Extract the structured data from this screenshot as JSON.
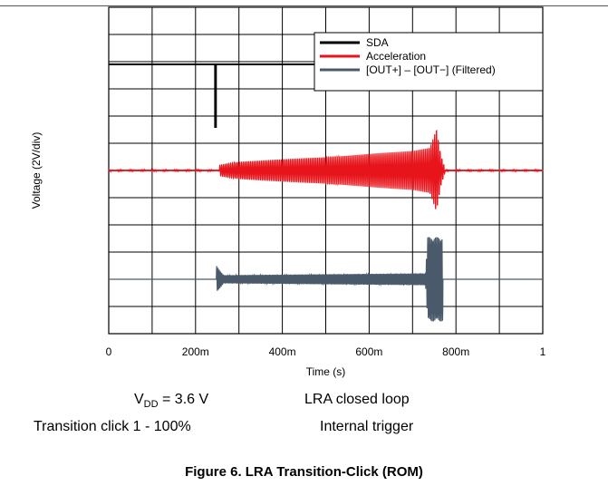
{
  "chart_data": {
    "type": "line",
    "title": "",
    "xlabel": "Time (s)",
    "ylabel": "Voltage (2V/div)",
    "xlim": [
      0,
      1
    ],
    "y_divisions": 12,
    "grid": true,
    "legend_position": "top-right",
    "x_ticks": [
      {
        "value": 0,
        "label": "0"
      },
      {
        "value": 0.2,
        "label": "200m"
      },
      {
        "value": 0.4,
        "label": "400m"
      },
      {
        "value": 0.6,
        "label": "600m"
      },
      {
        "value": 0.8,
        "label": "800m"
      },
      {
        "value": 1,
        "label": "1"
      }
    ],
    "series": [
      {
        "name": "SDA",
        "color": "#000000",
        "baseline_div": 9.9,
        "points": [
          [
            0,
            9.9
          ],
          [
            0.245,
            9.9
          ],
          [
            0.245,
            7.6
          ],
          [
            0.247,
            7.6
          ],
          [
            0.247,
            9.9
          ],
          [
            1,
            9.9
          ]
        ]
      },
      {
        "name": "Acceleration",
        "color": "#e8141b",
        "baseline_div": 6.0,
        "burst_start": 0.255,
        "burst_end": 0.775,
        "envelope_divs": [
          [
            0.255,
            0.2
          ],
          [
            0.3,
            0.32
          ],
          [
            0.5,
            0.5
          ],
          [
            0.7,
            0.72
          ],
          [
            0.74,
            0.85
          ],
          [
            0.755,
            1.55
          ],
          [
            0.765,
            0.6
          ],
          [
            0.775,
            0.05
          ]
        ],
        "cycles": 125
      },
      {
        "name": "[OUT+] – [OUT−] (Filtered)",
        "color": "#4a5a6a",
        "baseline_div": 2.0,
        "burst_start": 0.248,
        "burst_end": 0.77,
        "envelope_divs": [
          [
            0.248,
            0.5
          ],
          [
            0.265,
            0.15
          ],
          [
            0.73,
            0.22
          ],
          [
            0.735,
            1.55
          ],
          [
            0.77,
            1.55
          ],
          [
            0.775,
            0
          ]
        ],
        "cycles": 175
      }
    ]
  },
  "conditions": {
    "vdd_prefix": "V",
    "vdd_sub": "DD",
    "vdd_value": " = 3.6 V",
    "loop": "LRA closed loop",
    "transition": "Transition click 1 - 100%",
    "trigger": "Internal trigger"
  },
  "caption": "Figure 6. LRA Transition-Click (ROM)"
}
